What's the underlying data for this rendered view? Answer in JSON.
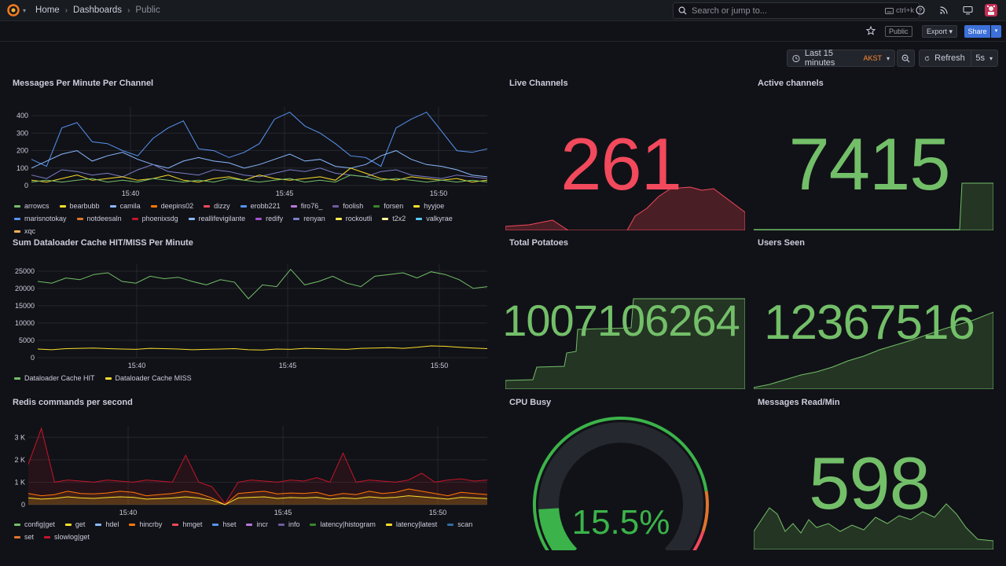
{
  "nav": {
    "breadcrumbs": [
      "Home",
      "Dashboards",
      "Public"
    ],
    "search_placeholder": "Search or jump to...",
    "search_shortcut": "ctrl+k"
  },
  "toolbar": {
    "public_badge": "Public",
    "export_label": "Export",
    "share_label": "Share"
  },
  "time": {
    "range_label": "Last 15 minutes",
    "timezone": "AKST",
    "refresh_label": "Refresh",
    "refresh_interval": "5s"
  },
  "colors": {
    "accent": "#3d71d9",
    "red": "#f2495c",
    "green": "#73bf69",
    "background": "#111217"
  },
  "panels": {
    "messages": {
      "title": "Messages Per Minute Per Channel",
      "legend": [
        {
          "name": "arrowcs",
          "color": "#73bf69"
        },
        {
          "name": "bearbubb",
          "color": "#fade2a"
        },
        {
          "name": "camila",
          "color": "#8ab8ff"
        },
        {
          "name": "deepins02",
          "color": "#ff780a"
        },
        {
          "name": "dizzy",
          "color": "#f2495c"
        },
        {
          "name": "erobb221",
          "color": "#5794f2"
        },
        {
          "name": "firo76_",
          "color": "#b877d9"
        },
        {
          "name": "foolish",
          "color": "#705da0"
        },
        {
          "name": "forsen",
          "color": "#37872d"
        },
        {
          "name": "hyyjoe",
          "color": "#fade2a"
        },
        {
          "name": "marisnotokay",
          "color": "#5794f2"
        },
        {
          "name": "notdeesaln",
          "color": "#e0752d"
        },
        {
          "name": "phoenixsdg",
          "color": "#c4162a"
        },
        {
          "name": "reallifevigilante",
          "color": "#8ab8ff"
        },
        {
          "name": "redify",
          "color": "#a352cc"
        },
        {
          "name": "renyan",
          "color": "#7c7ec9"
        },
        {
          "name": "rockoutli",
          "color": "#ffee52"
        },
        {
          "name": "t2x2",
          "color": "#fff899"
        },
        {
          "name": "valkyrae",
          "color": "#5ac8fa"
        },
        {
          "name": "xqc",
          "color": "#ffb357"
        }
      ]
    },
    "live_channels": {
      "title": "Live Channels",
      "value": "261"
    },
    "active_channels": {
      "title": "Active channels",
      "value": "7415"
    },
    "dataloader": {
      "title": "Sum Dataloader Cache HIT/MISS Per Minute",
      "legend": [
        {
          "name": "Dataloader Cache HIT",
          "color": "#73bf69"
        },
        {
          "name": "Dataloader Cache MISS",
          "color": "#fade2a"
        }
      ]
    },
    "total_potatoes": {
      "title": "Total Potatoes",
      "value": "1007106264"
    },
    "users_seen": {
      "title": "Users Seen",
      "value": "12367516"
    },
    "redis": {
      "title": "Redis commands per second",
      "legend": [
        {
          "name": "config|get",
          "color": "#73bf69"
        },
        {
          "name": "get",
          "color": "#fade2a"
        },
        {
          "name": "hdel",
          "color": "#8ab8ff"
        },
        {
          "name": "hincrby",
          "color": "#ff780a"
        },
        {
          "name": "hmget",
          "color": "#f2495c"
        },
        {
          "name": "hset",
          "color": "#5794f2"
        },
        {
          "name": "incr",
          "color": "#b877d9"
        },
        {
          "name": "info",
          "color": "#705da0"
        },
        {
          "name": "latency|histogram",
          "color": "#37872d"
        },
        {
          "name": "latency|latest",
          "color": "#fade2a"
        },
        {
          "name": "scan",
          "color": "#2f6ea3"
        },
        {
          "name": "set",
          "color": "#e0752d"
        },
        {
          "name": "slowlog|get",
          "color": "#c4162a"
        }
      ]
    },
    "cpu": {
      "title": "CPU Busy",
      "value": "15.5%",
      "fraction": 0.155
    },
    "messages_read": {
      "title": "Messages Read/Min",
      "value": "598"
    }
  },
  "chart_data": [
    {
      "type": "line",
      "panel": "Messages Per Minute Per Channel",
      "ylim": [
        0,
        450
      ],
      "yticks": [
        "0",
        "100",
        "200",
        "300",
        "400"
      ],
      "xticks": [
        "15:40",
        "15:45",
        "15:50"
      ],
      "series": [
        {
          "name": "marisnotokay",
          "values": [
            150,
            110,
            330,
            360,
            250,
            240,
            200,
            170,
            270,
            330,
            370,
            210,
            200,
            160,
            190,
            240,
            380,
            420,
            340,
            300,
            240,
            170,
            160,
            110,
            330,
            380,
            420,
            310,
            200,
            190,
            210
          ]
        },
        {
          "name": "camila",
          "values": [
            100,
            140,
            180,
            200,
            140,
            170,
            190,
            150,
            120,
            100,
            140,
            160,
            140,
            130,
            100,
            120,
            150,
            180,
            140,
            150,
            110,
            100,
            120,
            170,
            200,
            150,
            120,
            110,
            90,
            60,
            50
          ]
        },
        {
          "name": "reallifevigilante",
          "values": [
            60,
            40,
            90,
            80,
            60,
            70,
            50,
            90,
            120,
            80,
            70,
            60,
            90,
            80,
            60,
            50,
            70,
            90,
            80,
            100,
            70,
            60,
            50,
            80,
            90,
            60,
            50,
            40,
            60,
            50,
            40
          ]
        },
        {
          "name": "bearbubb",
          "values": [
            30,
            20,
            40,
            60,
            30,
            40,
            50,
            30,
            40,
            60,
            30,
            20,
            40,
            50,
            30,
            60,
            40,
            30,
            40,
            50,
            30,
            100,
            70,
            40,
            30,
            50,
            40,
            30,
            40,
            20,
            30
          ]
        },
        {
          "name": "arrowcs",
          "values": [
            20,
            30,
            20,
            30,
            40,
            20,
            30,
            20,
            40,
            30,
            20,
            30,
            20,
            40,
            30,
            20,
            30,
            40,
            20,
            30,
            20,
            60,
            50,
            30,
            40,
            30,
            20,
            30,
            20,
            30,
            20
          ]
        }
      ]
    },
    {
      "type": "line",
      "panel": "Sum Dataloader Cache HIT/MISS Per Minute",
      "ylim": [
        0,
        27000
      ],
      "yticks": [
        "0",
        "5000",
        "10000",
        "15000",
        "20000",
        "25000"
      ],
      "xticks": [
        "15:40",
        "15:45",
        "15:50"
      ],
      "series": [
        {
          "name": "Dataloader Cache HIT",
          "values": [
            22000,
            21500,
            23000,
            22500,
            24000,
            24500,
            22000,
            21500,
            23500,
            22800,
            23200,
            22000,
            21000,
            22500,
            21800,
            17000,
            21000,
            20500,
            25500,
            21000,
            22000,
            23500,
            21500,
            20500,
            23500,
            24000,
            24500,
            23000,
            24800,
            24000,
            22500,
            20000,
            20500
          ]
        },
        {
          "name": "Dataloader Cache MISS",
          "values": [
            2500,
            2300,
            2600,
            2700,
            2800,
            2600,
            2500,
            2400,
            2700,
            2600,
            2500,
            2300,
            2400,
            2500,
            2600,
            2300,
            2200,
            2500,
            2400,
            2700,
            2600,
            2500,
            2400,
            2700,
            2800,
            2900,
            2700,
            3000,
            3400,
            3300,
            3000,
            2800,
            2600
          ]
        }
      ]
    },
    {
      "type": "area",
      "panel": "Redis commands per second",
      "ylim": [
        0,
        3500
      ],
      "yticks": [
        "0",
        "1 K",
        "2 K",
        "3 K"
      ],
      "xticks": [
        "15:40",
        "15:45",
        "15:50"
      ],
      "series": [
        {
          "name": "slowlog|get",
          "values": [
            1800,
            3400,
            1000,
            1100,
            1050,
            1000,
            1100,
            1050,
            1000,
            1100,
            1050,
            1000,
            2200,
            1000,
            800,
            50,
            1000,
            1100,
            1050,
            1000,
            1100,
            1050,
            1200,
            1000,
            2300,
            1000,
            1100,
            1050,
            1000,
            1100,
            1400,
            1000,
            1100,
            1150,
            1050,
            1100
          ]
        },
        {
          "name": "hmget",
          "values": [
            500,
            400,
            450,
            600,
            500,
            480,
            520,
            600,
            550,
            400,
            450,
            500,
            600,
            500,
            300,
            0,
            500,
            550,
            600,
            480,
            520,
            500,
            550,
            400,
            500,
            450,
            600,
            500,
            550,
            700,
            600,
            500,
            400,
            550,
            500,
            450
          ]
        },
        {
          "name": "get",
          "values": [
            300,
            250,
            280,
            350,
            300,
            280,
            320,
            350,
            330,
            250,
            270,
            300,
            350,
            300,
            200,
            0,
            300,
            330,
            350,
            280,
            320,
            300,
            330,
            250,
            300,
            270,
            350,
            300,
            330,
            400,
            350,
            300,
            250,
            330,
            300,
            270
          ]
        }
      ]
    },
    {
      "type": "gauge",
      "panel": "CPU Busy",
      "value": 15.5,
      "unit": "%",
      "range": [
        0,
        100
      ]
    }
  ]
}
